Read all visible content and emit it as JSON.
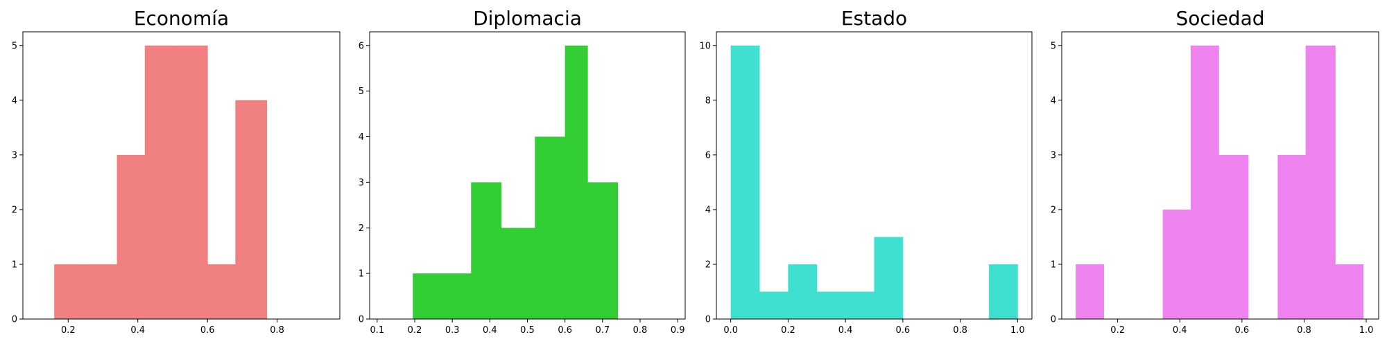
{
  "chart_data": [
    {
      "type": "bar",
      "title": "Economía",
      "color": "#f08080",
      "xlim": [
        0.07,
        0.98
      ],
      "ylim": [
        0,
        5.25
      ],
      "xticks": [
        0.2,
        0.4,
        0.6,
        0.8
      ],
      "xtick_labels": [
        "0.2",
        "0.4",
        "0.6",
        "0.8"
      ],
      "yticks": [
        0,
        1,
        2,
        3,
        4,
        5
      ],
      "ytick_labels": [
        "0",
        "1",
        "2",
        "3",
        "4",
        "5"
      ],
      "bins": [
        {
          "x0": 0.16,
          "x1": 0.25,
          "count": 1
        },
        {
          "x0": 0.25,
          "x1": 0.34,
          "count": 1
        },
        {
          "x0": 0.34,
          "x1": 0.42,
          "count": 3
        },
        {
          "x0": 0.42,
          "x1": 0.51,
          "count": 5
        },
        {
          "x0": 0.51,
          "x1": 0.6,
          "count": 5
        },
        {
          "x0": 0.6,
          "x1": 0.68,
          "count": 1
        },
        {
          "x0": 0.68,
          "x1": 0.77,
          "count": 4
        }
      ]
    },
    {
      "type": "bar",
      "title": "Diplomacia",
      "color": "#32cd32",
      "xlim": [
        0.08,
        0.92
      ],
      "ylim": [
        0,
        6.3
      ],
      "xticks": [
        0.1,
        0.2,
        0.3,
        0.4,
        0.5,
        0.6,
        0.7,
        0.8,
        0.9
      ],
      "xtick_labels": [
        "0.1",
        "0.2",
        "0.3",
        "0.4",
        "0.5",
        "0.6",
        "0.7",
        "0.8",
        "0.9"
      ],
      "yticks": [
        0,
        1,
        2,
        3,
        4,
        5,
        6
      ],
      "ytick_labels": [
        "0",
        "1",
        "2",
        "3",
        "4",
        "5",
        "6"
      ],
      "bins": [
        {
          "x0": 0.195,
          "x1": 0.26,
          "count": 1
        },
        {
          "x0": 0.26,
          "x1": 0.35,
          "count": 1
        },
        {
          "x0": 0.35,
          "x1": 0.43,
          "count": 3
        },
        {
          "x0": 0.43,
          "x1": 0.52,
          "count": 2
        },
        {
          "x0": 0.52,
          "x1": 0.6,
          "count": 4
        },
        {
          "x0": 0.6,
          "x1": 0.66,
          "count": 6
        },
        {
          "x0": 0.66,
          "x1": 0.74,
          "count": 3
        }
      ]
    },
    {
      "type": "bar",
      "title": "Estado",
      "color": "#40e0d0",
      "xlim": [
        -0.05,
        1.05
      ],
      "ylim": [
        0,
        10.5
      ],
      "xticks": [
        0.0,
        0.2,
        0.4,
        0.6,
        0.8,
        1.0
      ],
      "xtick_labels": [
        "0.0",
        "0.2",
        "0.4",
        "0.6",
        "0.8",
        "1.0"
      ],
      "yticks": [
        0,
        2,
        4,
        6,
        8,
        10
      ],
      "ytick_labels": [
        "0",
        "2",
        "4",
        "6",
        "8",
        "10"
      ],
      "bins": [
        {
          "x0": 0.0,
          "x1": 0.1,
          "count": 10
        },
        {
          "x0": 0.1,
          "x1": 0.2,
          "count": 1
        },
        {
          "x0": 0.2,
          "x1": 0.3,
          "count": 2
        },
        {
          "x0": 0.3,
          "x1": 0.4,
          "count": 1
        },
        {
          "x0": 0.4,
          "x1": 0.5,
          "count": 1
        },
        {
          "x0": 0.5,
          "x1": 0.6,
          "count": 3
        },
        {
          "x0": 0.6,
          "x1": 0.7,
          "count": 0
        },
        {
          "x0": 0.7,
          "x1": 0.8,
          "count": 0
        },
        {
          "x0": 0.8,
          "x1": 0.9,
          "count": 0
        },
        {
          "x0": 0.9,
          "x1": 1.0,
          "count": 2
        }
      ]
    },
    {
      "type": "bar",
      "title": "Sociedad",
      "color": "#ee82ee",
      "xlim": [
        0.02,
        1.04
      ],
      "ylim": [
        0,
        5.25
      ],
      "xticks": [
        0.2,
        0.4,
        0.6,
        0.8,
        1.0
      ],
      "xtick_labels": [
        "0.2",
        "0.4",
        "0.6",
        "0.8",
        "1.0"
      ],
      "yticks": [
        0,
        1,
        2,
        3,
        4,
        5
      ],
      "ytick_labels": [
        "0",
        "1",
        "2",
        "3",
        "4",
        "5"
      ],
      "bins": [
        {
          "x0": 0.065,
          "x1": 0.155,
          "count": 1
        },
        {
          "x0": 0.155,
          "x1": 0.245,
          "count": 0
        },
        {
          "x0": 0.245,
          "x1": 0.345,
          "count": 0
        },
        {
          "x0": 0.345,
          "x1": 0.435,
          "count": 2
        },
        {
          "x0": 0.435,
          "x1": 0.525,
          "count": 5
        },
        {
          "x0": 0.525,
          "x1": 0.62,
          "count": 3
        },
        {
          "x0": 0.62,
          "x1": 0.715,
          "count": 0
        },
        {
          "x0": 0.715,
          "x1": 0.805,
          "count": 3
        },
        {
          "x0": 0.805,
          "x1": 0.9,
          "count": 5
        },
        {
          "x0": 0.9,
          "x1": 0.99,
          "count": 1
        }
      ]
    }
  ]
}
